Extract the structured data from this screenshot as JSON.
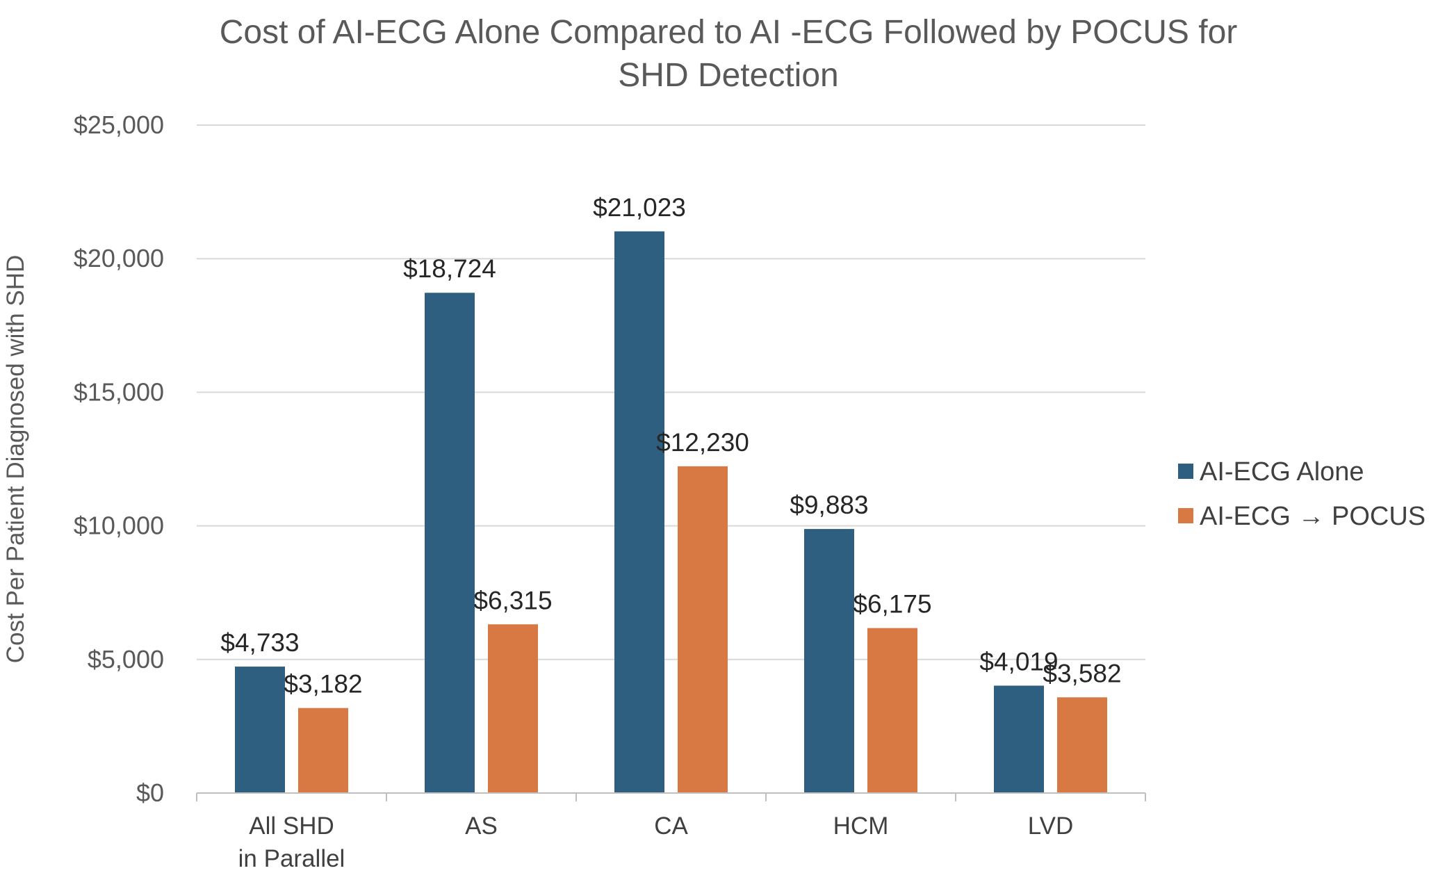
{
  "chart_data": {
    "type": "bar",
    "title_lines": [
      "Cost of AI-ECG Alone Compared to AI -ECG Followed by POCUS for",
      "SHD Detection"
    ],
    "ylabel": "Cost Per Patient Diagnosed with SHD",
    "xlabel": "",
    "ylim": [
      0,
      25000
    ],
    "yticks": [
      0,
      5000,
      10000,
      15000,
      20000,
      25000
    ],
    "ytick_labels": [
      "$0",
      "$5,000",
      "$10,000",
      "$15,000",
      "$20,000",
      "$25,000"
    ],
    "grid": true,
    "legend_position": "right",
    "categories": [
      {
        "lines": [
          "All SHD",
          "in Parallel"
        ]
      },
      {
        "lines": [
          "AS"
        ]
      },
      {
        "lines": [
          "CA"
        ]
      },
      {
        "lines": [
          "HCM"
        ]
      },
      {
        "lines": [
          "LVD"
        ]
      }
    ],
    "series": [
      {
        "name": "AI-ECG Alone",
        "color": "#2e5f80",
        "values": [
          4733,
          18724,
          21023,
          9883,
          4019
        ],
        "labels": [
          "$4,733",
          "$18,724",
          "$21,023",
          "$9,883",
          "$4,019"
        ]
      },
      {
        "name": "AI-ECG → POCUS",
        "color": "#d87842",
        "values": [
          3182,
          6315,
          12230,
          6175,
          3582
        ],
        "labels": [
          "$3,182",
          "$6,315",
          "$12,230",
          "$6,175",
          "$3,582"
        ]
      }
    ]
  }
}
